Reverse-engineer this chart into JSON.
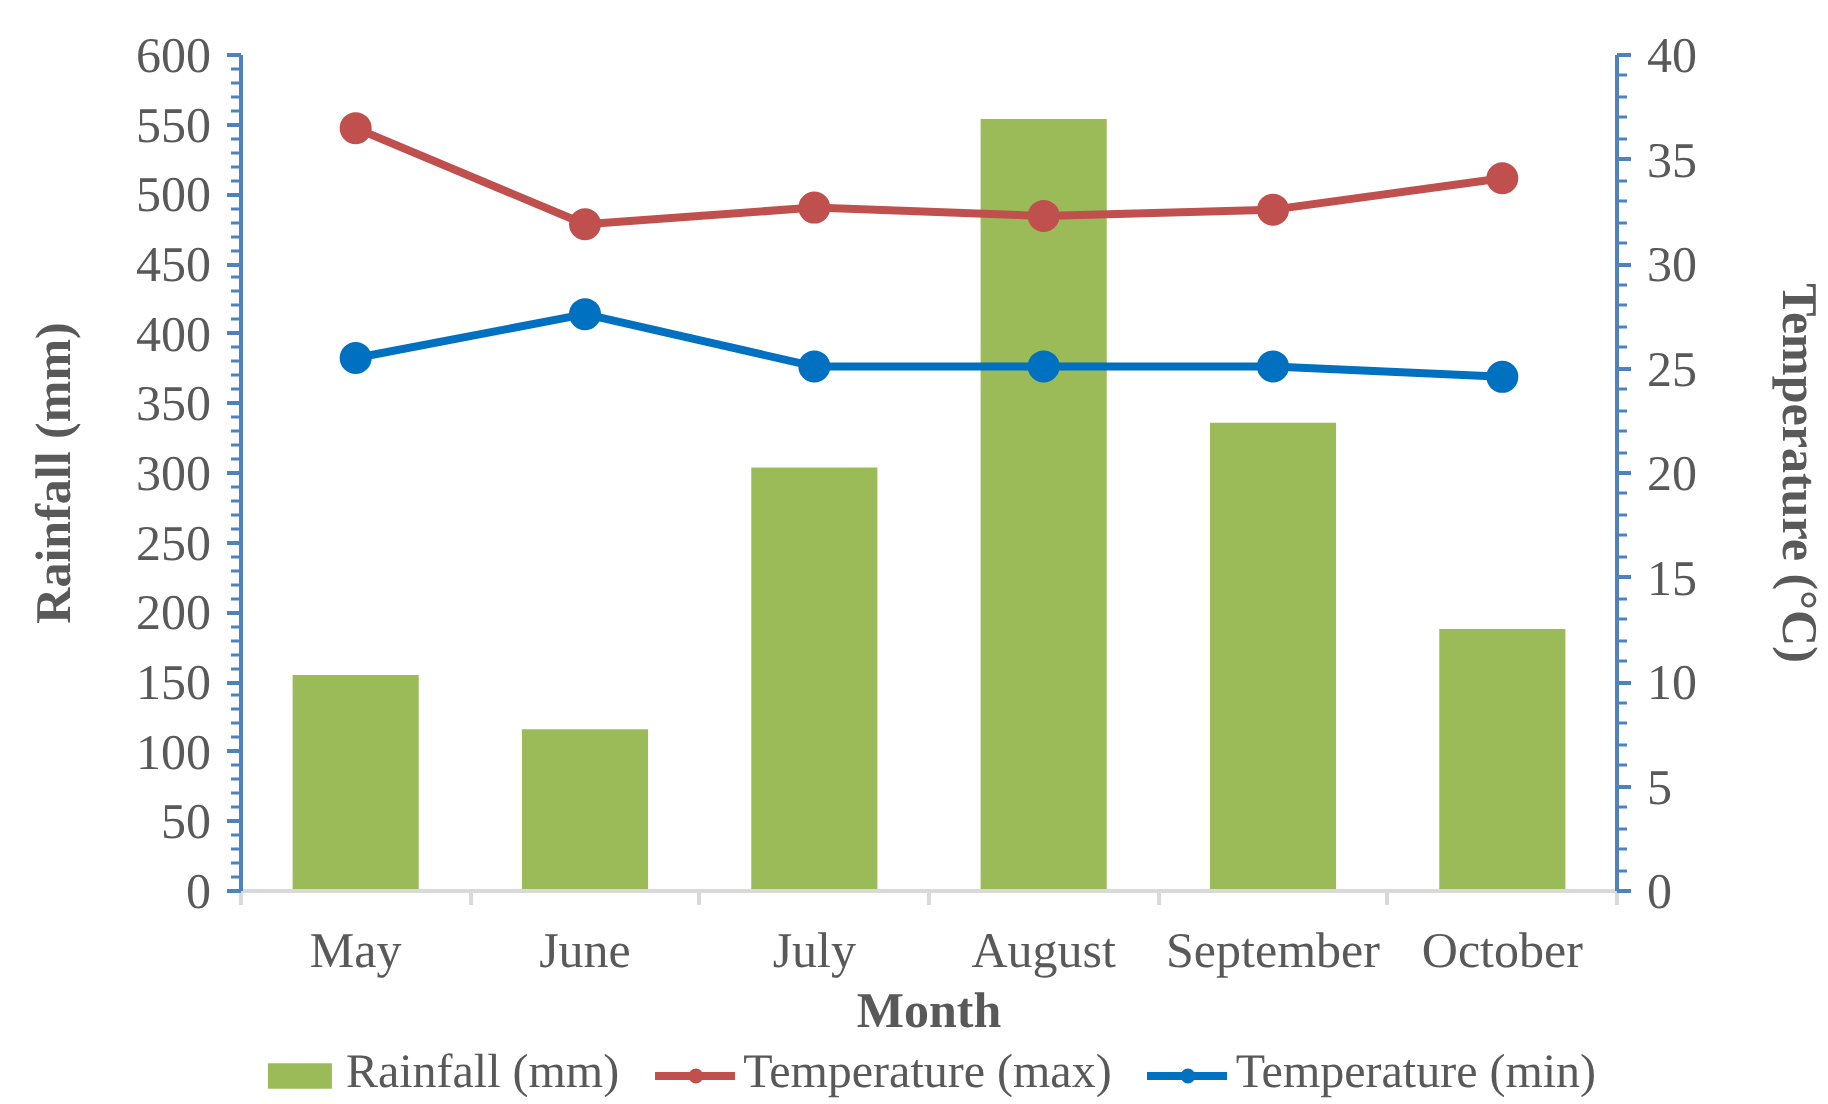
{
  "chart_data": {
    "type": "bar",
    "xlabel": "Month",
    "ylabel": "Rainfall (mm)",
    "y2label": "Temperature (°C)",
    "categories": [
      "May",
      "June",
      "July",
      "August",
      "September",
      "October"
    ],
    "series": [
      {
        "name": "Rainfall (mm)",
        "color": "#9bbb59",
        "values": [
          155,
          116,
          304,
          554,
          336,
          188
        ]
      },
      {
        "name": "Temperature (max)",
        "type": "line",
        "axis": "y2",
        "color": "#c0504d",
        "values": [
          36.5,
          31.9,
          32.7,
          32.3,
          32.6,
          34.1
        ]
      },
      {
        "name": "Temperature (min)",
        "type": "line",
        "axis": "y2",
        "color": "#0070c0",
        "values": [
          25.5,
          27.6,
          25.1,
          25.1,
          25.1,
          24.6
        ]
      }
    ],
    "ylim": [
      0,
      600
    ],
    "yticks": [
      0,
      50,
      100,
      150,
      200,
      250,
      300,
      350,
      400,
      450,
      500,
      550,
      600
    ],
    "y2lim": [
      0,
      40
    ],
    "y2ticks": [
      0,
      5,
      10,
      15,
      20,
      25,
      30,
      35,
      40
    ],
    "legend": "bottom",
    "marker": "circle",
    "line_style": "solid"
  }
}
